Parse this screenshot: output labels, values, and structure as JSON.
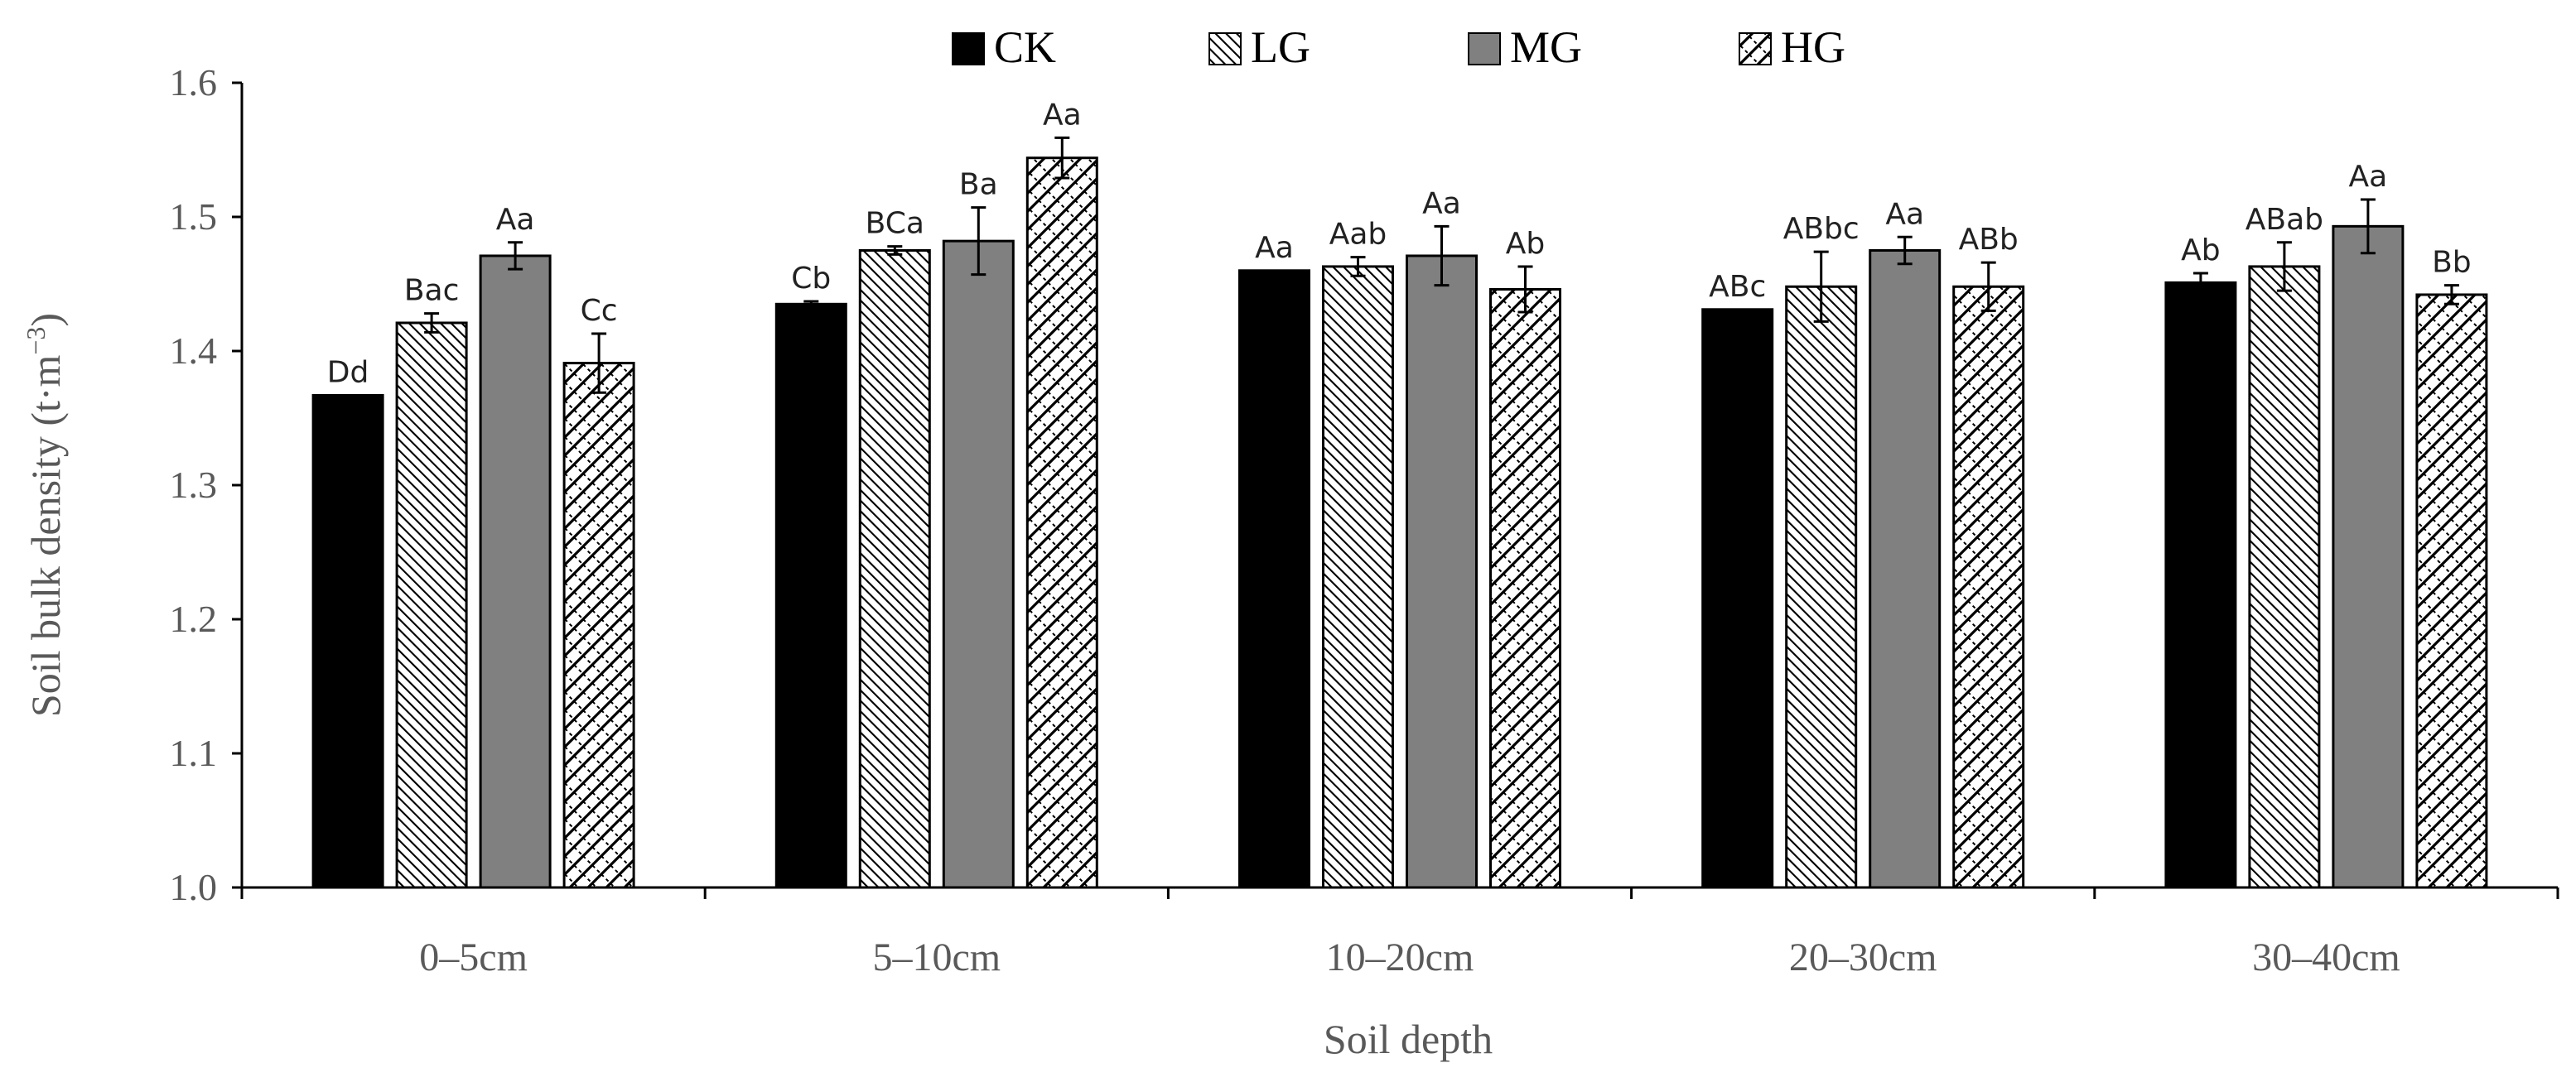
{
  "chart_data": {
    "type": "bar",
    "title": "",
    "xlabel": "Soil depth",
    "ylabel": "Soil bulk density (t·m⁻³)",
    "ylabel_main": "Soil bulk density (t·m",
    "ylabel_exp": "−3",
    "ylabel_close": ")",
    "ylim": [
      1.0,
      1.6
    ],
    "yticks": [
      "1.0",
      "1.1",
      "1.2",
      "1.3",
      "1.4",
      "1.5",
      "1.6"
    ],
    "categories": [
      "0–5cm",
      "5–10cm",
      "10–20cm",
      "20–30cm",
      "30–40cm"
    ],
    "legend_position": "top",
    "series": [
      {
        "name": "CK",
        "fill": "black",
        "values": [
          1.367,
          1.435,
          1.46,
          1.431,
          1.451
        ],
        "errors": [
          0.0,
          0.002,
          0.0,
          0.0,
          0.007
        ],
        "labels": [
          "Dd",
          "Cb",
          "Aa",
          "ABc",
          "Ab"
        ]
      },
      {
        "name": "LG",
        "fill": "dense-diagonal",
        "values": [
          1.421,
          1.475,
          1.463,
          1.448,
          1.463
        ],
        "errors": [
          0.007,
          0.003,
          0.007,
          0.026,
          0.018
        ],
        "labels": [
          "Bac",
          "BCa",
          "Aab",
          "ABbc",
          "ABab"
        ]
      },
      {
        "name": "MG",
        "fill": "gray",
        "values": [
          1.471,
          1.482,
          1.471,
          1.475,
          1.493
        ],
        "errors": [
          0.01,
          0.025,
          0.022,
          0.01,
          0.02
        ],
        "labels": [
          "Aa",
          "Ba",
          "Aa",
          "Aa",
          "Aa"
        ]
      },
      {
        "name": "HG",
        "fill": "lattice",
        "values": [
          1.391,
          1.544,
          1.446,
          1.448,
          1.442
        ],
        "errors": [
          0.022,
          0.015,
          0.017,
          0.018,
          0.007
        ],
        "labels": [
          "Cc",
          "Aa",
          "Ab",
          "ABb",
          "Bb"
        ]
      }
    ],
    "colors": {
      "black": "#000000",
      "gray": "#808080",
      "axis": "#000000",
      "text": "#595959"
    }
  }
}
